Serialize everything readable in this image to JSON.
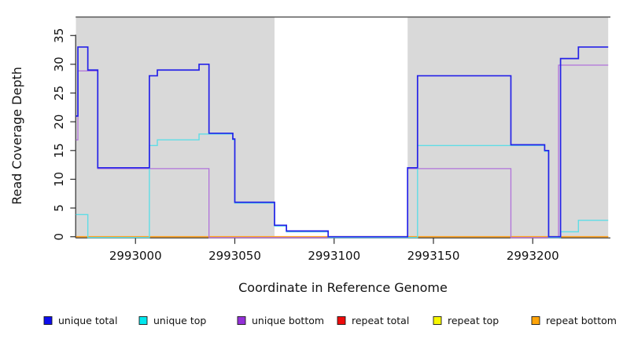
{
  "chart_data": {
    "type": "line",
    "subtype": "step-coverage",
    "title": "",
    "xlabel": "Coordinate in Reference Genome",
    "ylabel": "Read Coverage Depth",
    "xlim": [
      2992970,
      2993238
    ],
    "ylim": [
      0,
      38.2
    ],
    "grid": false,
    "x_ticks": [
      "2993000",
      "2993050",
      "2993100",
      "2993150",
      "2993200"
    ],
    "x_tick_values": [
      2993000,
      2993050,
      2993100,
      2993150,
      2993200
    ],
    "y_ticks": [
      "0",
      "5",
      "10",
      "15",
      "20",
      "25",
      "30",
      "35"
    ],
    "y_tick_values": [
      0,
      5,
      10,
      15,
      20,
      25,
      30,
      35
    ],
    "plot_background_color": "#ffffff",
    "shaded_regions": [
      {
        "from": 2992970,
        "to": 2993070,
        "color": "#d9d9d9"
      },
      {
        "from": 2993137,
        "to": 2993238,
        "color": "#d9d9d9"
      }
    ],
    "series": [
      {
        "name": "unique total",
        "line_color": "#2522e8",
        "legend_color": "#0d0dee",
        "steps": [
          [
            2992970,
            21
          ],
          [
            2992971,
            33
          ],
          [
            2992976,
            29
          ],
          [
            2992981,
            12
          ],
          [
            2993007,
            28
          ],
          [
            2993011,
            29
          ],
          [
            2993032,
            30
          ],
          [
            2993037,
            18
          ],
          [
            2993049,
            17
          ],
          [
            2993050,
            6
          ],
          [
            2993070,
            2
          ],
          [
            2993076,
            1
          ],
          [
            2993097,
            0
          ],
          [
            2993137,
            12
          ],
          [
            2993142,
            28
          ],
          [
            2993189,
            16
          ],
          [
            2993206,
            15
          ],
          [
            2993208,
            0
          ],
          [
            2993214,
            31
          ],
          [
            2993223,
            33
          ]
        ]
      },
      {
        "name": "unique top",
        "line_color": "#5fdde6",
        "legend_color": "#00e7ee",
        "steps": [
          [
            2992970,
            4
          ],
          [
            2992976,
            0
          ],
          [
            2993007,
            16
          ],
          [
            2993011,
            17
          ],
          [
            2993032,
            18
          ],
          [
            2993049,
            17
          ],
          [
            2993050,
            6
          ],
          [
            2993070,
            2
          ],
          [
            2993076,
            1
          ],
          [
            2993097,
            0
          ],
          [
            2993142,
            16
          ],
          [
            2993206,
            15
          ],
          [
            2993208,
            0
          ],
          [
            2993214,
            1
          ],
          [
            2993223,
            3
          ]
        ]
      },
      {
        "name": "unique bottom",
        "line_color": "#b172da",
        "legend_color": "#9430d8",
        "steps": [
          [
            2992970,
            17
          ],
          [
            2992971,
            29
          ],
          [
            2992981,
            12
          ],
          [
            2993037,
            0
          ],
          [
            2993137,
            12
          ],
          [
            2993189,
            0
          ],
          [
            2993213,
            30
          ]
        ]
      },
      {
        "name": "repeat total",
        "line_color": "#cc3344",
        "legend_color": "#ee0a0a",
        "steps": [
          [
            2992970,
            0
          ]
        ]
      },
      {
        "name": "repeat top",
        "line_color": "#eeee33",
        "legend_color": "#f7f700",
        "steps": [
          [
            2992970,
            0
          ]
        ]
      },
      {
        "name": "repeat bottom",
        "line_color": "#ff9f1a",
        "legend_color": "#ffa408",
        "steps": [
          [
            2992970,
            0
          ]
        ]
      }
    ],
    "legend": {
      "position": "bottom",
      "labels": [
        "unique total",
        "unique top",
        "unique bottom",
        "repeat total",
        "repeat top",
        "repeat bottom"
      ]
    }
  }
}
